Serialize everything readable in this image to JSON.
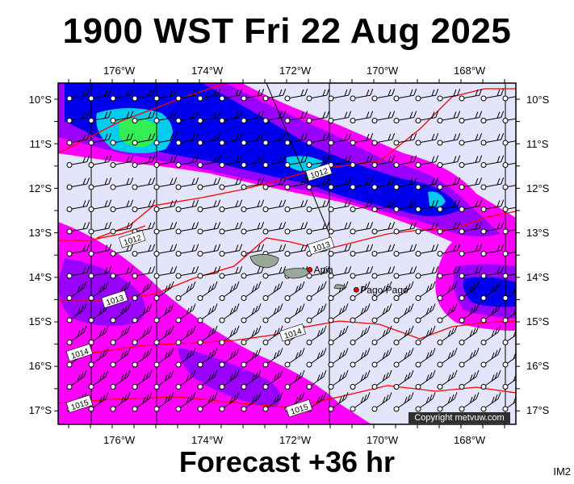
{
  "title": "1900 WST Fri 22 Aug 2025",
  "subtitle": "Forecast +36 hr",
  "code": "IM2",
  "copyright": "Copyright metvuw.com",
  "longitude_labels": [
    "176°W",
    "174°W",
    "172°W",
    "170°W",
    "168°W"
  ],
  "latitude_labels": [
    "10°S",
    "11°S",
    "12°S",
    "13°S",
    "14°S",
    "15°S",
    "16°S",
    "17°S"
  ],
  "places": [
    {
      "name": "Apia",
      "lon": -171.76,
      "lat": -13.83
    },
    {
      "name": "Pago Pago",
      "lon": -170.7,
      "lat": -14.28
    }
  ],
  "isobars": [
    {
      "label": "1012",
      "lon": -171.55,
      "lat": -11.65
    },
    {
      "label": "1012",
      "lon": -175.8,
      "lat": -13.15
    },
    {
      "label": "1013",
      "lon": -171.5,
      "lat": -13.3
    },
    {
      "label": "1013",
      "lon": -176.2,
      "lat": -14.5
    },
    {
      "label": "1014",
      "lon": -172.15,
      "lat": -15.25
    },
    {
      "label": "1014",
      "lon": -177.0,
      "lat": -15.7
    },
    {
      "label": "1015",
      "lon": -177.0,
      "lat": -16.85
    },
    {
      "label": "1015",
      "lon": -172.0,
      "lat": -16.95
    }
  ],
  "colors": {
    "background": "#e4e4fa",
    "magenta": "#ff00ff",
    "violet": "#9900ff",
    "blue": "#0000ee",
    "cyan": "#00ccee",
    "green": "#33ee55",
    "isobar": "#ff0000"
  }
}
